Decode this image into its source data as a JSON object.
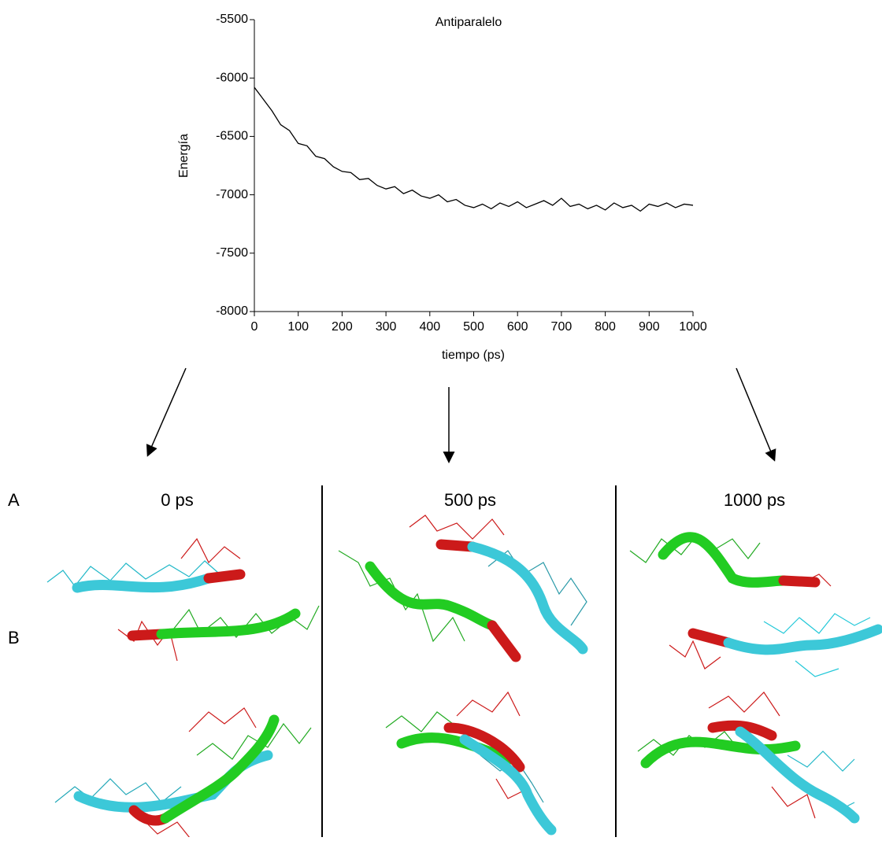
{
  "chart_data": {
    "type": "line",
    "title": "Antiparalelo",
    "xlabel": "tiempo (ps)",
    "ylabel": "Energía",
    "x": [
      0,
      20,
      40,
      60,
      80,
      100,
      120,
      140,
      160,
      180,
      200,
      220,
      240,
      260,
      280,
      300,
      320,
      340,
      360,
      380,
      400,
      420,
      440,
      460,
      480,
      500,
      520,
      540,
      560,
      580,
      600,
      620,
      640,
      660,
      680,
      700,
      720,
      740,
      760,
      780,
      800,
      820,
      840,
      860,
      880,
      900,
      920,
      940,
      960,
      980,
      1000
    ],
    "series": [
      {
        "name": "Antiparalelo",
        "color": "#000000",
        "values": [
          -6080,
          -6180,
          -6280,
          -6400,
          -6450,
          -6560,
          -6580,
          -6670,
          -6690,
          -6760,
          -6800,
          -6810,
          -6870,
          -6860,
          -6920,
          -6950,
          -6930,
          -6990,
          -6960,
          -7010,
          -7030,
          -7000,
          -7060,
          -7040,
          -7090,
          -7110,
          -7080,
          -7120,
          -7070,
          -7100,
          -7060,
          -7110,
          -7080,
          -7050,
          -7090,
          -7030,
          -7100,
          -7080,
          -7120,
          -7090,
          -7130,
          -7070,
          -7110,
          -7090,
          -7140,
          -7080,
          -7100,
          -7070,
          -7110,
          -7080,
          -7090
        ]
      }
    ],
    "xlim": [
      0,
      1000
    ],
    "xticks": [
      0,
      100,
      200,
      300,
      400,
      500,
      600,
      700,
      800,
      900,
      1000
    ],
    "ylim": [
      -8000,
      -5500
    ],
    "yticks": [
      -8000,
      -7500,
      -7000,
      -6500,
      -6000,
      -5500
    ],
    "grid": false
  },
  "figure": {
    "row_labels": [
      "A",
      "B"
    ],
    "time_labels": [
      "0 ps",
      "500 ps",
      "1000 ps"
    ]
  }
}
